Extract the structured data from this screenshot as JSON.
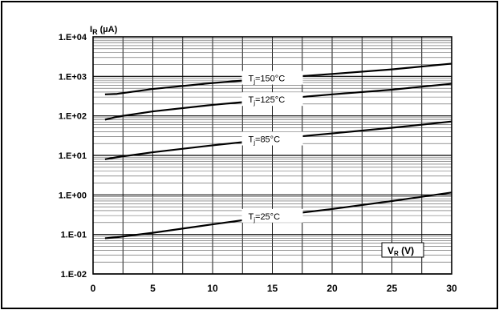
{
  "chart_data": {
    "type": "line",
    "title": "",
    "y_axis": {
      "label_main": "I",
      "label_sub": "R",
      "label_unit": " (µA)",
      "scale": "log",
      "range": [
        0.01,
        10000
      ],
      "tick_values": [
        0.01,
        0.1,
        1,
        10,
        100,
        1000,
        10000
      ],
      "tick_labels": [
        "1.E-02",
        "1.E-01",
        "1.E+00",
        "1.E+01",
        "1.E+02",
        "1.E+03",
        "1.E+04"
      ]
    },
    "x_axis": {
      "label_main": "V",
      "label_sub": "R",
      "label_unit": " (V)",
      "scale": "linear",
      "range": [
        0,
        30
      ],
      "tick_values": [
        0,
        5,
        10,
        15,
        20,
        25,
        30
      ],
      "tick_labels": [
        "0",
        "5",
        "10",
        "15",
        "20",
        "25",
        "30"
      ]
    },
    "grid": true,
    "series": [
      {
        "name": "Tj=150°C",
        "label_prefix": "T",
        "label_sub": "j",
        "label_suffix": "=150°C",
        "label_x": 15,
        "x": [
          1,
          2,
          5,
          10,
          15,
          20,
          25,
          30
        ],
        "y": [
          350,
          360,
          480,
          680,
          900,
          1150,
          1500,
          2100
        ]
      },
      {
        "name": "Tj=125°C",
        "label_prefix": "T",
        "label_sub": "j",
        "label_suffix": "=125°C",
        "label_x": 15,
        "x": [
          1,
          2,
          5,
          10,
          15,
          20,
          25,
          30
        ],
        "y": [
          80,
          95,
          130,
          190,
          260,
          350,
          460,
          650
        ]
      },
      {
        "name": "Tj=85°C",
        "label_prefix": "T",
        "label_sub": "j",
        "label_suffix": "=85°C",
        "label_x": 15,
        "x": [
          1,
          2,
          5,
          10,
          15,
          20,
          25,
          30
        ],
        "y": [
          8,
          9,
          12,
          18,
          26,
          36,
          50,
          72
        ]
      },
      {
        "name": "Tj=25°C",
        "label_prefix": "T",
        "label_sub": "j",
        "label_suffix": "=25°C",
        "label_x": 15,
        "x": [
          1,
          2,
          5,
          10,
          15,
          20,
          25,
          30
        ],
        "y": [
          0.08,
          0.085,
          0.11,
          0.18,
          0.29,
          0.44,
          0.7,
          1.15
        ]
      }
    ]
  }
}
